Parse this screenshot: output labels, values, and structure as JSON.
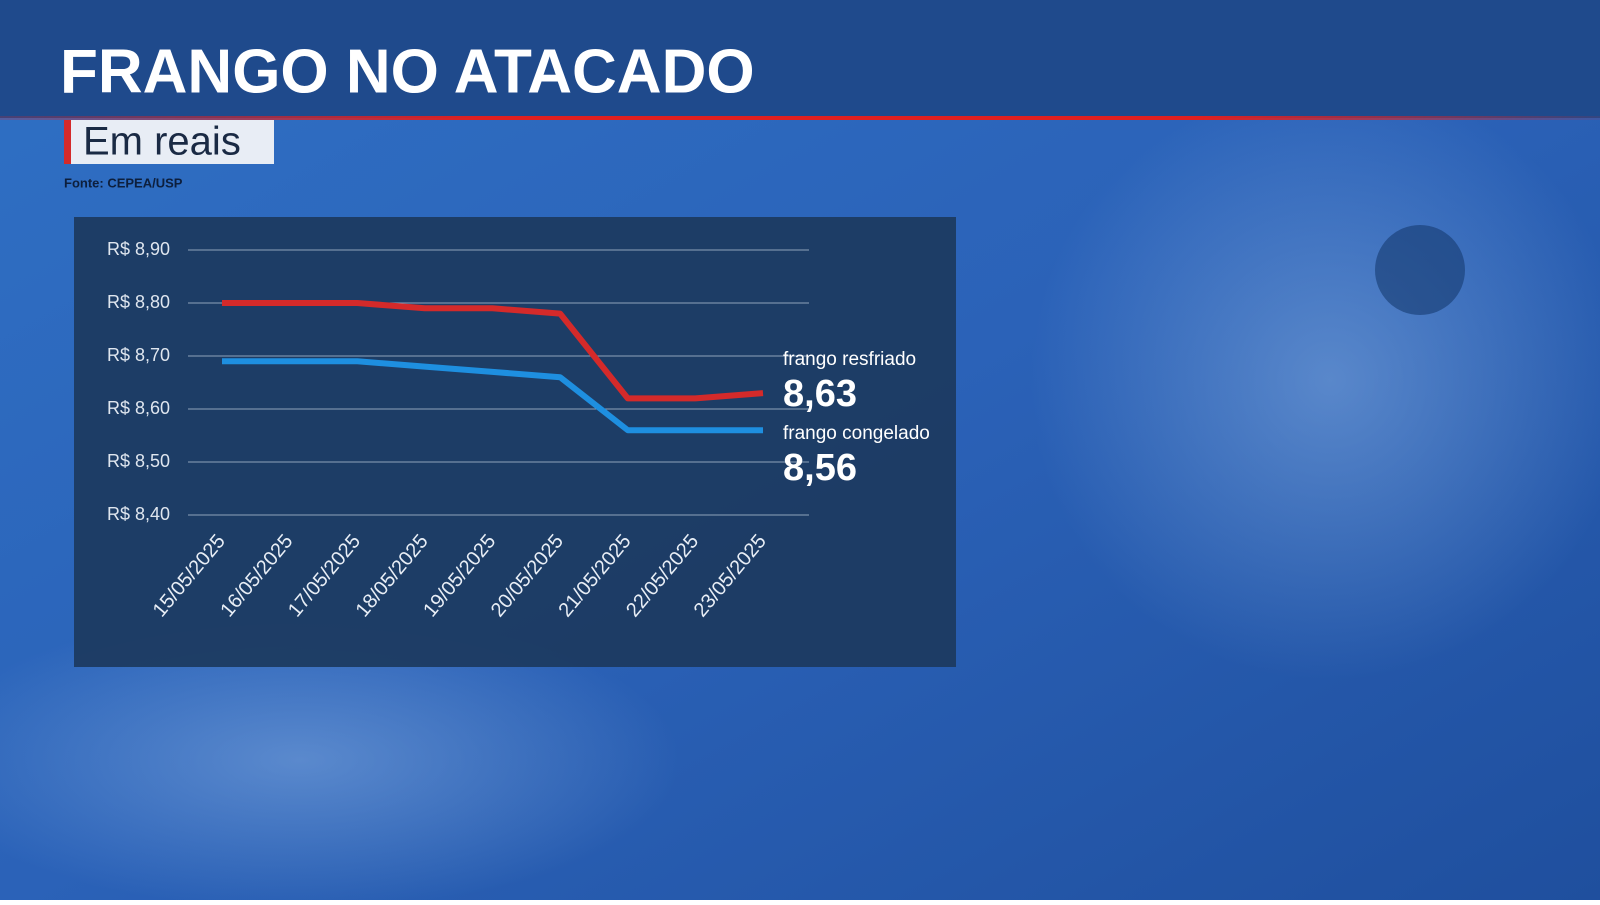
{
  "chart_data": {
    "type": "line",
    "title": "FRANGO NO ATACADO",
    "subtitle": "Em reais",
    "source": "Fonte: CEPEA/USP",
    "categories": [
      "15/05/2025",
      "16/05/2025",
      "17/05/2025",
      "18/05/2025",
      "19/05/2025",
      "20/05/2025",
      "21/05/2025",
      "22/05/2025",
      "23/05/2025"
    ],
    "series": [
      {
        "name": "frango resfriado",
        "color": "#d42a2a",
        "values": [
          8.8,
          8.8,
          8.8,
          8.79,
          8.79,
          8.78,
          8.62,
          8.62,
          8.63
        ],
        "value_labels": [
          null,
          null,
          null,
          null,
          null,
          null,
          null,
          null,
          "8,63"
        ]
      },
      {
        "name": "frango congelado",
        "color": "#1e8fe0",
        "values": [
          8.69,
          8.69,
          8.69,
          8.68,
          8.67,
          8.66,
          8.56,
          8.56,
          8.56
        ],
        "value_labels": [
          null,
          null,
          null,
          null,
          null,
          null,
          null,
          null,
          "8,56"
        ]
      }
    ],
    "ylim": [
      8.4,
      8.9
    ],
    "yticks": [
      {
        "value": 8.4,
        "label": "R$ 8,40"
      },
      {
        "value": 8.5,
        "label": "R$ 8,50"
      },
      {
        "value": 8.6,
        "label": "R$ 8,60"
      },
      {
        "value": 8.7,
        "label": "R$ 8,70"
      },
      {
        "value": 8.8,
        "label": "R$ 8,80"
      },
      {
        "value": 8.9,
        "label": "R$ 8,90"
      }
    ],
    "grid": true
  }
}
